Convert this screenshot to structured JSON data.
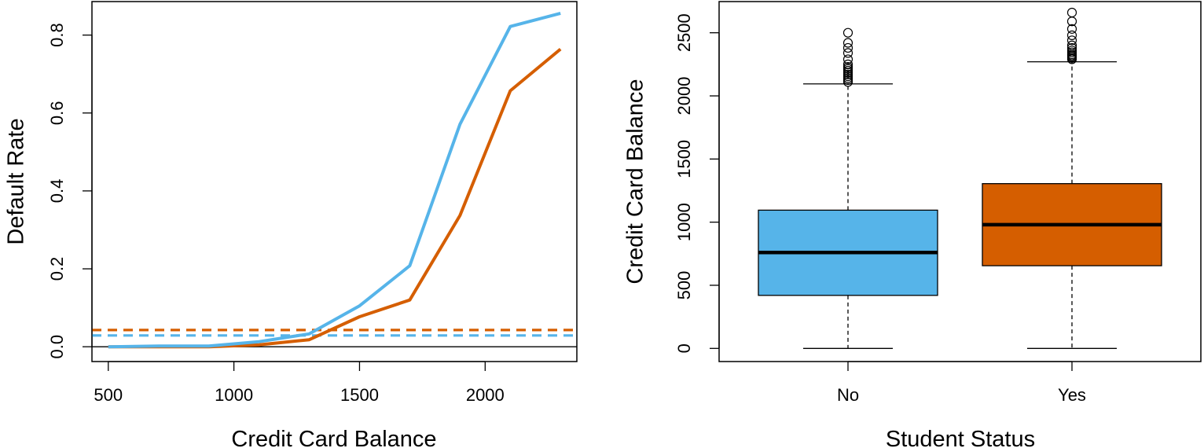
{
  "colors": {
    "blue": "#56b4e9",
    "orange": "#d55e00",
    "black": "#000000"
  },
  "chart_data": [
    {
      "type": "line",
      "title": "",
      "xlabel": "Credit Card Balance",
      "ylabel": "Default Rate",
      "xlim": [
        435,
        2365
      ],
      "ylim": [
        -0.038,
        0.886
      ],
      "xticks": [
        "500",
        "1000",
        "1500",
        "2000"
      ],
      "yticks": [
        "0.0",
        "0.2",
        "0.4",
        "0.6",
        "0.8"
      ],
      "series": [
        {
          "color": "#d55e00",
          "style": "solid",
          "x": [
            500,
            700,
            900,
            1100,
            1300,
            1500,
            1700,
            1900,
            2100,
            2300
          ],
          "y": [
            0.0,
            0.0,
            0.0,
            0.005,
            0.018,
            0.077,
            0.12,
            0.337,
            0.657,
            0.764
          ]
        },
        {
          "color": "#56b4e9",
          "style": "solid",
          "x": [
            500,
            700,
            900,
            1100,
            1300,
            1500,
            1700,
            1900,
            2100,
            2300
          ],
          "y": [
            0.0,
            0.002,
            0.002,
            0.013,
            0.033,
            0.105,
            0.208,
            0.571,
            0.822,
            0.856
          ]
        },
        {
          "color": "#d55e00",
          "style": "dashed",
          "x": [
            435,
            2365
          ],
          "y": [
            0.043,
            0.043
          ]
        },
        {
          "color": "#56b4e9",
          "style": "dashed",
          "x": [
            435,
            2365
          ],
          "y": [
            0.029,
            0.029
          ]
        },
        {
          "color": "#000000",
          "style": "solid-thin",
          "x": [
            435,
            2365
          ],
          "y": [
            0.0,
            0.0
          ]
        }
      ]
    },
    {
      "type": "box",
      "title": "",
      "xlabel": "Student Status",
      "ylabel": "Credit Card Balance",
      "ylim": [
        -104,
        2747
      ],
      "yticks": [
        "0",
        "500",
        "1000",
        "1500",
        "2000",
        "2500"
      ],
      "categories": [
        "No",
        "Yes"
      ],
      "boxes": [
        {
          "category": "No",
          "color": "#56b4e9",
          "whisker_low": 0,
          "q1": 420,
          "median": 760,
          "q3": 1095,
          "whisker_high": 2095,
          "outliers": [
            2110,
            2125,
            2140,
            2155,
            2170,
            2185,
            2200,
            2215,
            2230,
            2250,
            2290,
            2340,
            2380,
            2420,
            2500
          ]
        },
        {
          "category": "Yes",
          "color": "#d55e00",
          "whisker_low": 0,
          "q1": 655,
          "median": 980,
          "q3": 1305,
          "whisker_high": 2270,
          "outliers": [
            2290,
            2300,
            2310,
            2320,
            2330,
            2345,
            2360,
            2380,
            2400,
            2440,
            2480,
            2530,
            2590,
            2660
          ]
        }
      ]
    }
  ]
}
